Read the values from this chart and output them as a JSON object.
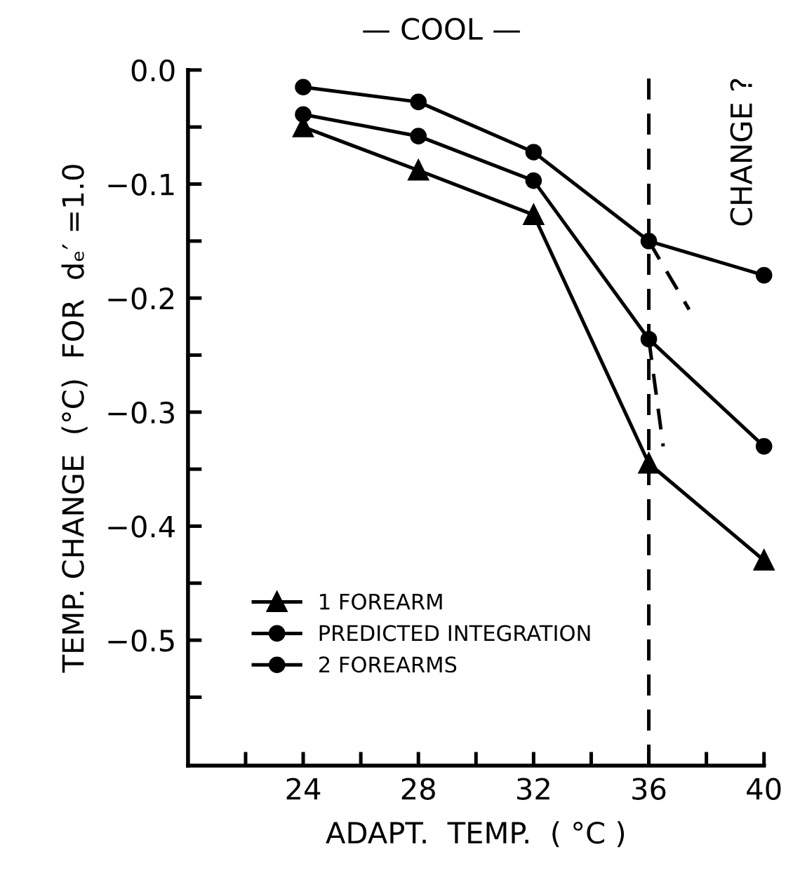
{
  "chart_data": {
    "type": "line",
    "xlabel": "ADAPT.  TEMP.  ( °C )",
    "ylabel": "TEMP. CHANGE  (°C)  FOR  dₑ′ =1.0",
    "x": [
      24,
      28,
      32,
      36,
      40
    ],
    "series": [
      {
        "name": "1 FOREARM",
        "color": "#000000",
        "marker": "triangle",
        "values": [
          -0.05,
          -0.088,
          -0.127,
          -0.345,
          -0.43
        ]
      },
      {
        "name": "PREDICTED INTEGRATION",
        "color": "#000000",
        "marker": "circle",
        "values": [
          -0.039,
          -0.058,
          -0.097,
          -0.236,
          -0.33
        ]
      },
      {
        "name": "2 FOREARMS",
        "color": "#000000",
        "marker": "circle",
        "values": [
          -0.015,
          -0.028,
          -0.072,
          -0.15,
          -0.18
        ]
      },
      {
        "color": "#000000",
        "marker": "none",
        "line_style": "dashed",
        "x": [
          36,
          37.4
        ],
        "values": [
          -0.15,
          -0.21
        ]
      },
      {
        "color": "#000000",
        "marker": "none",
        "line_style": "dashed",
        "x": [
          36,
          36.5
        ],
        "values": [
          -0.236,
          -0.33
        ]
      }
    ],
    "xlim": [
      20,
      40
    ],
    "ylim": [
      -0.61,
      0.0
    ],
    "xticks": [
      {
        "value": 22,
        "label": null
      },
      24,
      {
        "value": 26,
        "label": null
      },
      28,
      {
        "value": 30,
        "label": null
      },
      32,
      {
        "value": 34,
        "label": null
      },
      36,
      {
        "value": 38,
        "label": null
      },
      40
    ],
    "yticks": [
      {
        "value": 0.0,
        "label": "0.0"
      },
      {
        "value": -0.05,
        "label": null
      },
      {
        "value": -0.1,
        "label": "−0.1"
      },
      {
        "value": -0.15,
        "label": null
      },
      {
        "value": -0.2,
        "label": "−0.2"
      },
      {
        "value": -0.25,
        "label": null
      },
      {
        "value": -0.3,
        "label": "−0.3"
      },
      {
        "value": -0.35,
        "label": null
      },
      {
        "value": -0.4,
        "label": "−0.4"
      },
      {
        "value": -0.45,
        "label": null
      },
      {
        "value": -0.5,
        "label": "−0.5"
      },
      {
        "value": -0.55,
        "label": null
      }
    ],
    "ref_lines": [
      {
        "axis": "x",
        "value": 36,
        "color": "#000000",
        "line_style": "dashed"
      }
    ],
    "annotations": [
      "— COOL —",
      "CHANGE ?"
    ],
    "legend": "bottom left",
    "grid": false
  }
}
